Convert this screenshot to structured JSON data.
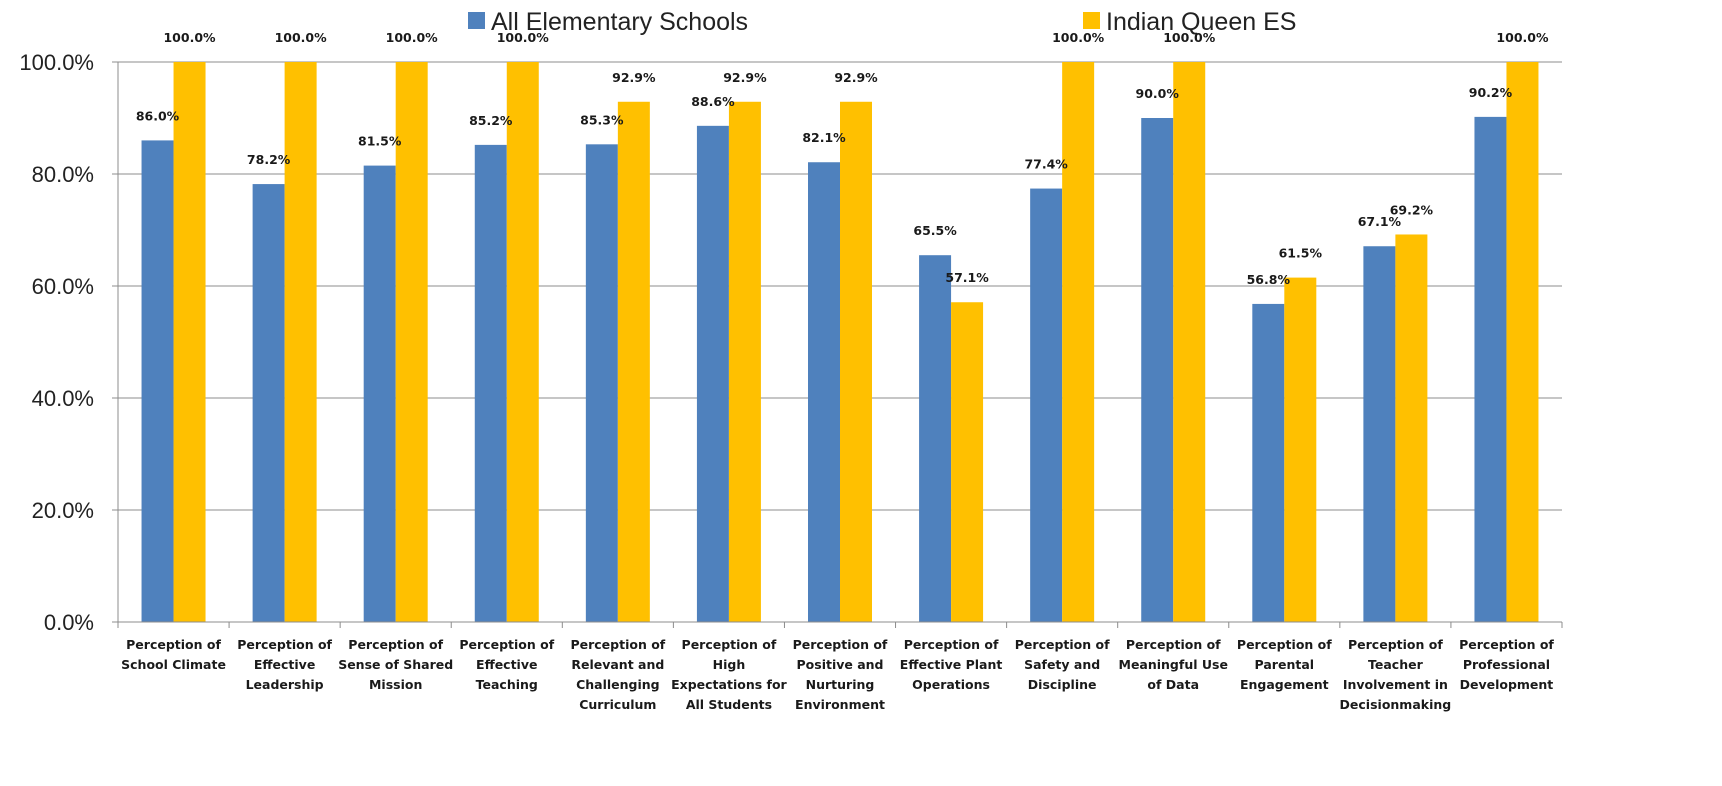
{
  "chart_data": {
    "type": "bar",
    "title": "",
    "xlabel": "",
    "ylabel": "",
    "ylim": [
      0,
      100
    ],
    "yticks": [
      0,
      20,
      40,
      60,
      80,
      100
    ],
    "ytick_labels": [
      "0.0%",
      "20.0%",
      "40.0%",
      "60.0%",
      "80.0%",
      "100.0%"
    ],
    "grid": true,
    "legend_position": "top",
    "categories": [
      [
        "Perception of",
        "School Climate"
      ],
      [
        "Perception of",
        "Effective",
        "Leadership"
      ],
      [
        "Perception of",
        "Sense of Shared",
        "Mission"
      ],
      [
        "Perception of",
        "Effective",
        "Teaching"
      ],
      [
        "Perception of",
        "Relevant and",
        "Challenging",
        "Curriculum"
      ],
      [
        "Perception of",
        "High",
        "Expectations for",
        "All Students"
      ],
      [
        "Perception of",
        "Positive and",
        "Nurturing",
        "Environment"
      ],
      [
        "Perception of",
        "Effective Plant",
        "Operations"
      ],
      [
        "Perception of",
        "Safety and",
        "Discipline"
      ],
      [
        "Perception of",
        "Meaningful Use",
        "of Data"
      ],
      [
        "Perception of",
        "Parental",
        "Engagement"
      ],
      [
        "Perception of",
        "Teacher",
        "Involvement in",
        "Decisionmaking"
      ],
      [
        "Perception of",
        "Professional",
        "Development"
      ]
    ],
    "series": [
      {
        "name": "All Elementary Schools",
        "color": "#4F81BD",
        "values": [
          86.0,
          78.2,
          81.5,
          85.2,
          85.3,
          88.6,
          82.1,
          65.5,
          77.4,
          90.0,
          56.8,
          67.1,
          90.2
        ],
        "labels": [
          "86.0%",
          "78.2%",
          "81.5%",
          "85.2%",
          "85.3%",
          "88.6%",
          "82.1%",
          "65.5%",
          "77.4%",
          "90.0%",
          "56.8%",
          "67.1%",
          "90.2%"
        ]
      },
      {
        "name": "Indian Queen ES",
        "color": "#FFC000",
        "values": [
          100.0,
          100.0,
          100.0,
          100.0,
          92.9,
          92.9,
          92.9,
          57.1,
          100.0,
          100.0,
          61.5,
          69.2,
          100.0
        ],
        "labels": [
          "100.0%",
          "100.0%",
          "100.0%",
          "100.0%",
          "92.9%",
          "92.9%",
          "92.9%",
          "57.1%",
          "100.0%",
          "100.0%",
          "61.5%",
          "69.2%",
          "100.0%"
        ]
      }
    ]
  }
}
